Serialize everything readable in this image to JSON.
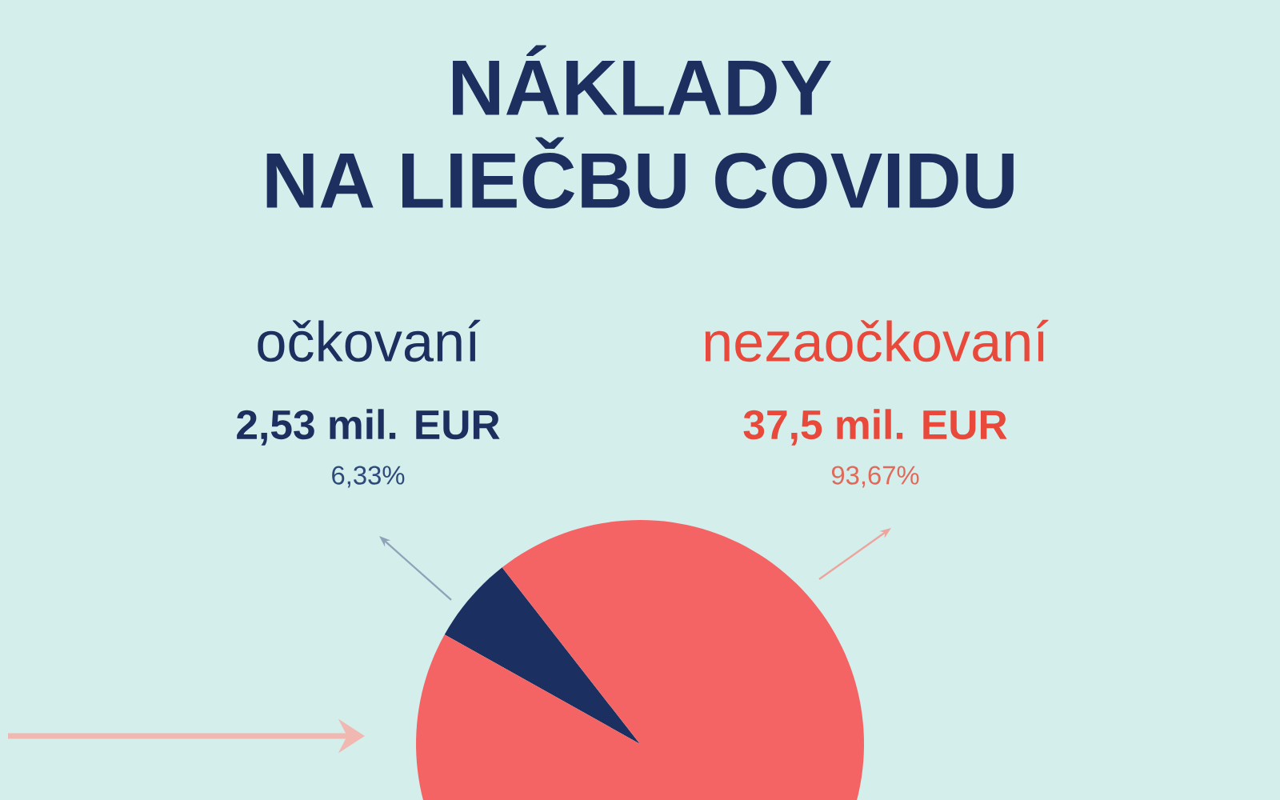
{
  "chart_data": {
    "type": "pie",
    "title": "NÁKLADY",
    "subtitle": "NA LIEČBU COVIDU",
    "categories": [
      "očkovaní",
      "nezaočkovaní"
    ],
    "values": [
      2.53,
      37.5
    ],
    "value_labels": [
      "2,53 mil. EUR",
      "37,5 mil. EUR"
    ],
    "annotations": [
      "6,33%",
      "93,67%"
    ],
    "colors": [
      "#1b3060",
      "#f46464"
    ]
  }
}
